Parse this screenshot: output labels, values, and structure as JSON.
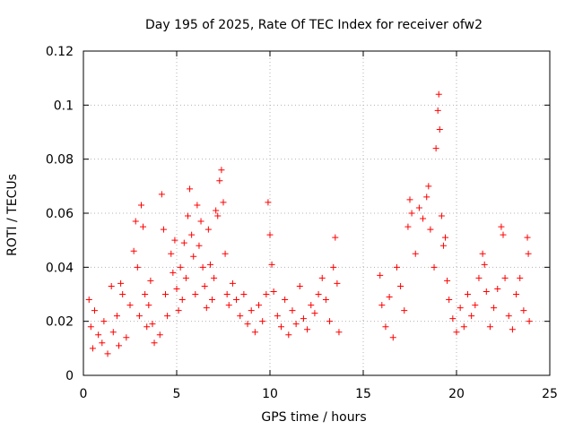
{
  "chart_data": {
    "type": "scatter",
    "title": "Day 195 of 2025, Rate Of TEC Index for receiver ofw2",
    "xlabel": "GPS time / hours",
    "ylabel": "ROTI / TECUs",
    "xlim": [
      0,
      25
    ],
    "ylim": [
      0,
      0.12
    ],
    "xticks": [
      "0",
      "5",
      "10",
      "15",
      "20",
      "25"
    ],
    "yticks": [
      "0",
      "0.02",
      "0.04",
      "0.06",
      "0.08",
      "0.1",
      "0.12"
    ],
    "grid": true,
    "marker": "plus",
    "color": "#ff0000",
    "series": [
      {
        "points": [
          [
            0.3,
            0.028
          ],
          [
            0.4,
            0.018
          ],
          [
            0.5,
            0.01
          ],
          [
            0.6,
            0.024
          ],
          [
            0.8,
            0.015
          ],
          [
            1.0,
            0.012
          ],
          [
            1.1,
            0.02
          ],
          [
            1.3,
            0.008
          ],
          [
            1.5,
            0.033
          ],
          [
            1.6,
            0.016
          ],
          [
            1.8,
            0.022
          ],
          [
            1.9,
            0.011
          ],
          [
            2.0,
            0.034
          ],
          [
            2.1,
            0.03
          ],
          [
            2.3,
            0.014
          ],
          [
            2.5,
            0.026
          ],
          [
            2.7,
            0.046
          ],
          [
            2.8,
            0.057
          ],
          [
            2.9,
            0.04
          ],
          [
            3.0,
            0.022
          ],
          [
            3.1,
            0.063
          ],
          [
            3.2,
            0.055
          ],
          [
            3.3,
            0.03
          ],
          [
            3.4,
            0.018
          ],
          [
            3.5,
            0.026
          ],
          [
            3.6,
            0.035
          ],
          [
            3.7,
            0.019
          ],
          [
            3.8,
            0.012
          ],
          [
            4.1,
            0.015
          ],
          [
            4.2,
            0.067
          ],
          [
            4.3,
            0.054
          ],
          [
            4.4,
            0.03
          ],
          [
            4.5,
            0.022
          ],
          [
            4.7,
            0.045
          ],
          [
            4.8,
            0.038
          ],
          [
            4.9,
            0.05
          ],
          [
            5.0,
            0.032
          ],
          [
            5.1,
            0.024
          ],
          [
            5.2,
            0.04
          ],
          [
            5.3,
            0.028
          ],
          [
            5.4,
            0.049
          ],
          [
            5.5,
            0.036
          ],
          [
            5.6,
            0.059
          ],
          [
            5.7,
            0.069
          ],
          [
            5.8,
            0.052
          ],
          [
            5.9,
            0.044
          ],
          [
            6.0,
            0.03
          ],
          [
            6.1,
            0.063
          ],
          [
            6.2,
            0.048
          ],
          [
            6.3,
            0.057
          ],
          [
            6.4,
            0.04
          ],
          [
            6.5,
            0.033
          ],
          [
            6.6,
            0.025
          ],
          [
            6.7,
            0.054
          ],
          [
            6.8,
            0.041
          ],
          [
            6.9,
            0.028
          ],
          [
            7.0,
            0.036
          ],
          [
            7.1,
            0.061
          ],
          [
            7.2,
            0.059
          ],
          [
            7.3,
            0.072
          ],
          [
            7.4,
            0.076
          ],
          [
            7.5,
            0.064
          ],
          [
            7.6,
            0.045
          ],
          [
            7.7,
            0.03
          ],
          [
            7.8,
            0.026
          ],
          [
            8.0,
            0.034
          ],
          [
            8.2,
            0.028
          ],
          [
            8.4,
            0.022
          ],
          [
            8.6,
            0.03
          ],
          [
            8.8,
            0.019
          ],
          [
            9.0,
            0.024
          ],
          [
            9.2,
            0.016
          ],
          [
            9.4,
            0.026
          ],
          [
            9.6,
            0.02
          ],
          [
            9.8,
            0.03
          ],
          [
            9.9,
            0.064
          ],
          [
            10.0,
            0.052
          ],
          [
            10.1,
            0.041
          ],
          [
            10.2,
            0.031
          ],
          [
            10.4,
            0.022
          ],
          [
            10.6,
            0.018
          ],
          [
            10.8,
            0.028
          ],
          [
            11.0,
            0.015
          ],
          [
            11.2,
            0.024
          ],
          [
            11.4,
            0.019
          ],
          [
            11.6,
            0.033
          ],
          [
            11.8,
            0.021
          ],
          [
            12.0,
            0.017
          ],
          [
            12.2,
            0.026
          ],
          [
            12.4,
            0.023
          ],
          [
            12.6,
            0.03
          ],
          [
            12.8,
            0.036
          ],
          [
            13.0,
            0.028
          ],
          [
            13.2,
            0.02
          ],
          [
            13.4,
            0.04
          ],
          [
            13.5,
            0.051
          ],
          [
            13.6,
            0.034
          ],
          [
            13.7,
            0.016
          ],
          [
            15.9,
            0.037
          ],
          [
            16.0,
            0.026
          ],
          [
            16.2,
            0.018
          ],
          [
            16.4,
            0.029
          ],
          [
            16.6,
            0.014
          ],
          [
            16.8,
            0.04
          ],
          [
            17.0,
            0.033
          ],
          [
            17.2,
            0.024
          ],
          [
            17.4,
            0.055
          ],
          [
            17.5,
            0.065
          ],
          [
            17.6,
            0.06
          ],
          [
            17.8,
            0.045
          ],
          [
            18.0,
            0.062
          ],
          [
            18.2,
            0.058
          ],
          [
            18.4,
            0.066
          ],
          [
            18.5,
            0.07
          ],
          [
            18.6,
            0.054
          ],
          [
            18.8,
            0.04
          ],
          [
            18.9,
            0.084
          ],
          [
            19.0,
            0.098
          ],
          [
            19.05,
            0.104
          ],
          [
            19.1,
            0.091
          ],
          [
            19.2,
            0.059
          ],
          [
            19.3,
            0.048
          ],
          [
            19.4,
            0.051
          ],
          [
            19.5,
            0.035
          ],
          [
            19.6,
            0.028
          ],
          [
            19.8,
            0.021
          ],
          [
            20.0,
            0.016
          ],
          [
            20.2,
            0.025
          ],
          [
            20.4,
            0.018
          ],
          [
            20.6,
            0.03
          ],
          [
            20.8,
            0.022
          ],
          [
            21.0,
            0.026
          ],
          [
            21.2,
            0.036
          ],
          [
            21.4,
            0.045
          ],
          [
            21.5,
            0.041
          ],
          [
            21.6,
            0.031
          ],
          [
            21.8,
            0.018
          ],
          [
            22.0,
            0.025
          ],
          [
            22.2,
            0.032
          ],
          [
            22.4,
            0.055
          ],
          [
            22.5,
            0.052
          ],
          [
            22.6,
            0.036
          ],
          [
            22.8,
            0.022
          ],
          [
            23.0,
            0.017
          ],
          [
            23.2,
            0.03
          ],
          [
            23.4,
            0.036
          ],
          [
            23.6,
            0.024
          ],
          [
            23.8,
            0.051
          ],
          [
            23.85,
            0.045
          ],
          [
            23.9,
            0.02
          ]
        ]
      }
    ]
  }
}
